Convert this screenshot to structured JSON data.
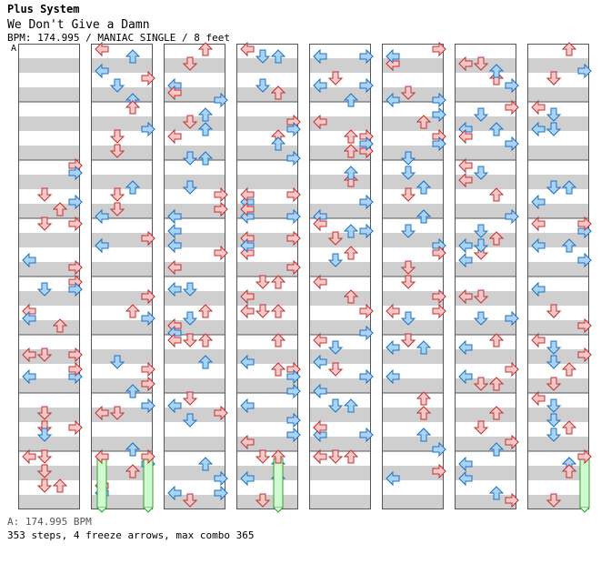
{
  "header": {
    "system": "Plus System",
    "title": "We Don't Give a Damn",
    "info": "BPM: 174.995 / MANIAC SINGLE / 8 feet"
  },
  "marker": "A",
  "footer": {
    "bpm_line": "A: 174.995 BPM",
    "stats_line": "353 steps, 4 freeze arrows, max combo 365"
  },
  "colors": {
    "stripe": "#cfcfcf",
    "border": "#555555",
    "red_fill": "#fbc8c8",
    "red_stroke": "#c03030",
    "blue_fill": "#a8d4f8",
    "blue_stroke": "#2070c0",
    "freeze_fill": "#d0fbd0",
    "freeze_stroke": "#30a030"
  },
  "chart": {
    "type": "step-chart",
    "measures_per_column": 8,
    "lanes": [
      "left",
      "down",
      "up",
      "right"
    ],
    "freeze_arrows": [
      {
        "col": 1,
        "lane": "left"
      },
      {
        "col": 1,
        "lane": "right"
      },
      {
        "col": 3,
        "lane": "up"
      },
      {
        "col": 7,
        "lane": "right"
      }
    ]
  }
}
